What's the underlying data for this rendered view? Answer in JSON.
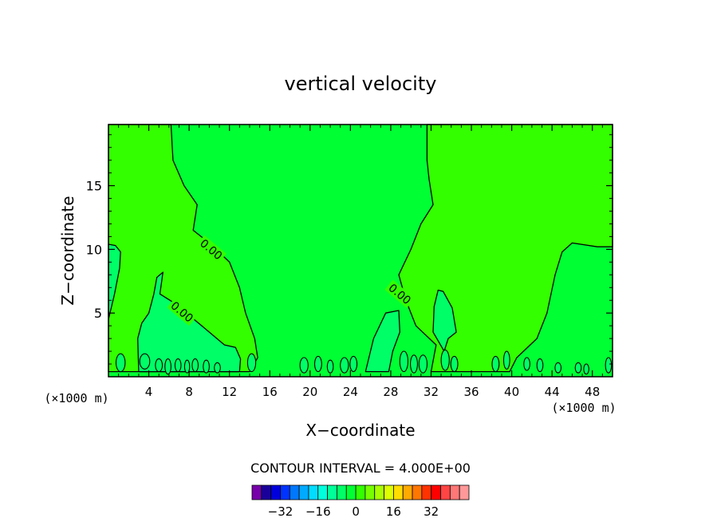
{
  "chart_data": {
    "type": "contour",
    "title": "vertical velocity",
    "xlabel": "X−coordinate",
    "ylabel": "Z−coordinate",
    "x_unit_left": "(×1000 m)",
    "x_unit_right": "(×1000 m)",
    "xlim": [
      0,
      50
    ],
    "ylim": [
      0,
      19.8
    ],
    "x_ticks": [
      4,
      8,
      12,
      16,
      20,
      24,
      28,
      32,
      36,
      40,
      44,
      48
    ],
    "y_ticks": [
      5,
      10,
      15
    ],
    "grid": false,
    "contour_levels": [
      0
    ],
    "contour_labels": [
      {
        "text": "0.00",
        "x": 10.2,
        "y": 10.0
      },
      {
        "text": "0.00",
        "x": 7.3,
        "y": 5.1
      },
      {
        "text": "0.00",
        "x": 28.9,
        "y": 6.5
      }
    ],
    "regions_positive": [
      [
        [
          0,
          19.8
        ],
        [
          6.2,
          19.8
        ],
        [
          6.4,
          17
        ],
        [
          7.5,
          15
        ],
        [
          8.8,
          13.5
        ],
        [
          8.4,
          11.5
        ],
        [
          10,
          10.5
        ],
        [
          12,
          9
        ],
        [
          13,
          7
        ],
        [
          13.6,
          5
        ],
        [
          14.5,
          3
        ],
        [
          14.8,
          1.5
        ],
        [
          14,
          0.4
        ],
        [
          0,
          0.4
        ]
      ],
      [
        [
          31.6,
          19.8
        ],
        [
          50,
          19.8
        ],
        [
          50,
          10.2
        ],
        [
          48.5,
          10.2
        ],
        [
          46,
          10.5
        ],
        [
          45,
          9.8
        ],
        [
          44.3,
          8
        ],
        [
          43.5,
          5
        ],
        [
          42.5,
          3
        ],
        [
          40.5,
          1.5
        ],
        [
          39.8,
          0.4
        ],
        [
          32,
          0.4
        ],
        [
          32.5,
          2.5
        ],
        [
          30.5,
          4
        ],
        [
          29.5,
          6
        ],
        [
          28.8,
          8
        ],
        [
          30,
          10
        ],
        [
          31,
          12
        ],
        [
          32.2,
          13.5
        ],
        [
          31.8,
          15.5
        ],
        [
          31.6,
          17
        ]
      ]
    ],
    "regions_near_zero": [
      [
        [
          0,
          0.4
        ],
        [
          0,
          4.5
        ],
        [
          0.6,
          6.5
        ],
        [
          1.1,
          8.5
        ],
        [
          1.2,
          9.8
        ],
        [
          0.7,
          10.3
        ],
        [
          0,
          10.4
        ]
      ],
      [
        [
          5.4,
          8.2
        ],
        [
          5.1,
          6.5
        ],
        [
          6.5,
          5.8
        ],
        [
          8.5,
          4.5
        ],
        [
          10,
          3.5
        ],
        [
          11.5,
          2.5
        ],
        [
          12.6,
          2.3
        ],
        [
          13.1,
          1.4
        ],
        [
          13,
          0.4
        ],
        [
          3,
          0.4
        ],
        [
          2.9,
          3
        ],
        [
          3.3,
          4.2
        ],
        [
          4,
          5
        ],
        [
          4.5,
          6.5
        ],
        [
          4.8,
          7.8
        ]
      ],
      [
        [
          25.5,
          0.4
        ],
        [
          26.3,
          3
        ],
        [
          27.5,
          5
        ],
        [
          28.8,
          5.2
        ],
        [
          28.9,
          3.5
        ],
        [
          28.2,
          2
        ],
        [
          27.8,
          0.4
        ]
      ],
      [
        [
          32.3,
          5.5
        ],
        [
          32.7,
          6.8
        ],
        [
          33.2,
          6.7
        ],
        [
          34.1,
          5.4
        ],
        [
          34.5,
          3.5
        ],
        [
          33.7,
          3
        ],
        [
          33.3,
          2
        ],
        [
          32.2,
          3.5
        ]
      ]
    ],
    "contour_interval_label": "CONTOUR INTERVAL = 4.000E+00",
    "colorbar": {
      "colors": [
        "#7700aa",
        "#1a0099",
        "#0000dd",
        "#0033ff",
        "#0077ff",
        "#00aaff",
        "#00ddff",
        "#00ffdd",
        "#00ff99",
        "#00ff66",
        "#00ff33",
        "#33ff00",
        "#77ff00",
        "#aaff00",
        "#ddff00",
        "#ffdd00",
        "#ffaa00",
        "#ff7700",
        "#ff3300",
        "#ff0000",
        "#ff4444",
        "#ff7777",
        "#ff9999"
      ],
      "tick_labels": [
        "−32",
        "−16",
        "0",
        "16",
        "32"
      ],
      "tick_values": [
        -32,
        -16,
        0,
        16,
        32
      ]
    },
    "fill_colors": {
      "background": "#00ff33",
      "positive": "#33ff00",
      "near_zero": "#00ff66"
    }
  }
}
